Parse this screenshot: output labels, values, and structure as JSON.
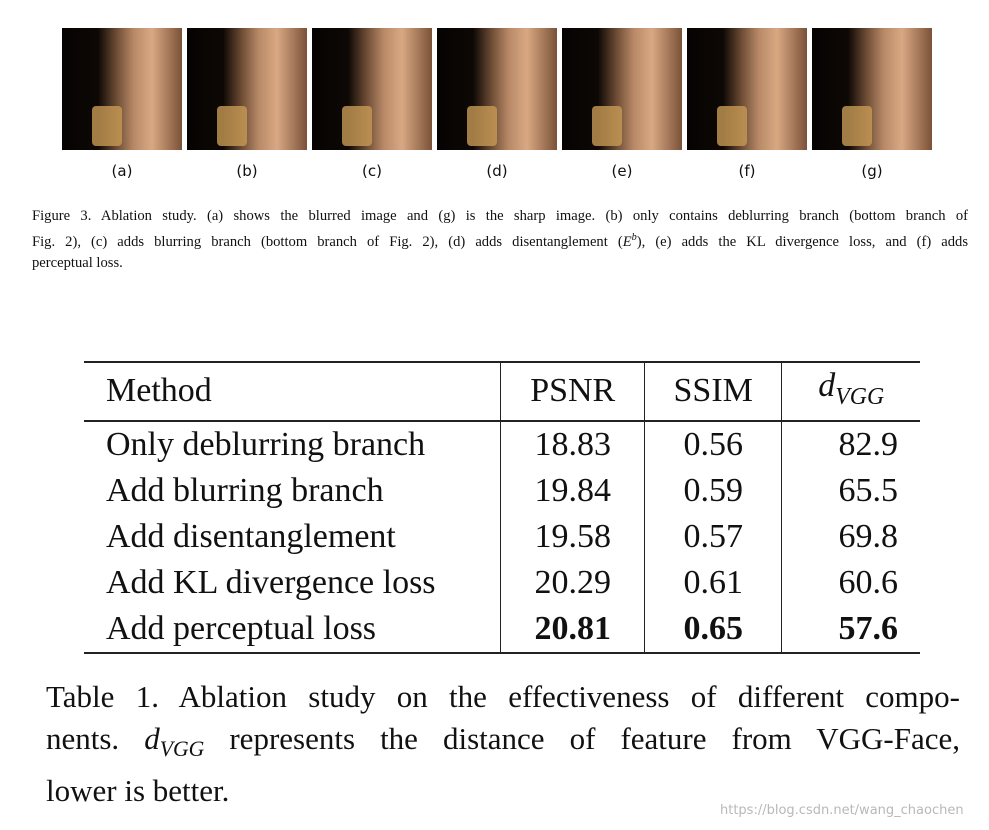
{
  "figure": {
    "panels": [
      "(a)",
      "(b)",
      "(c)",
      "(d)",
      "(e)",
      "(f)",
      "(g)"
    ],
    "caption": {
      "line1": "Figure 3. Ablation study. (a) shows the blurred image and (g) is the sharp image. (b) only contains deblurring branch (bottom branch of",
      "line2_start": "Fig. 2), (c) adds blurring branch (bottom branch of Fig. 2), (d) adds disentanglement (",
      "math_base": "E",
      "math_sup": "b",
      "line2_end": "), (e) adds the KL divergence loss, and (f) adds",
      "line3": "perceptual loss."
    }
  },
  "table": {
    "header": [
      "Method",
      "PSNR",
      "SSIM"
    ],
    "header_math": {
      "base": "d",
      "sub": "VGG"
    },
    "rows": [
      [
        "Only deblurring branch",
        18.83,
        0.56,
        82.9
      ],
      [
        "Add blurring branch",
        19.84,
        0.59,
        65.5
      ],
      [
        "Add disentanglement",
        19.58,
        0.57,
        69.8
      ],
      [
        "Add KL divergence loss",
        20.29,
        0.61,
        60.6
      ],
      [
        "Add perceptual loss",
        20.81,
        0.65,
        57.6
      ]
    ]
  },
  "table_caption": {
    "line1": "Table 1. Ablation study on the effectiveness of different compo-",
    "line2_start": "nents.",
    "math_base": "d",
    "math_sub": "VGG",
    "line2_end": "represents the distance of feature from VGG-Face,",
    "line3": "lower is better."
  },
  "watermark": "https://blog.csdn.net/wang_chaochen"
}
